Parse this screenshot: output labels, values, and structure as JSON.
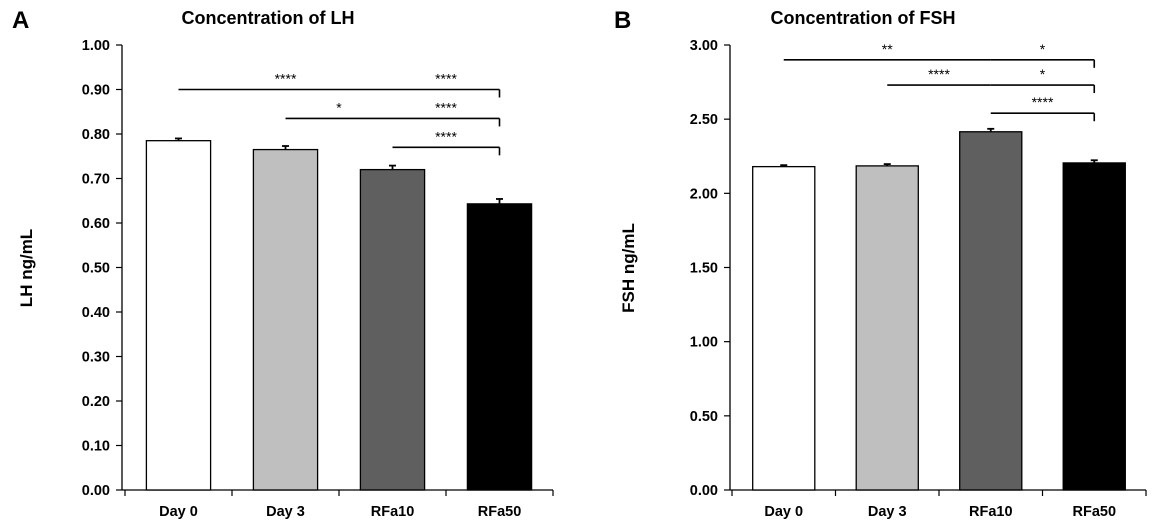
{
  "colors": {
    "axis": "#000000",
    "bar_outline": "#000000",
    "bar_fills": [
      "#ffffff",
      "#bfbfbf",
      "#5f5f5f",
      "#000000"
    ]
  },
  "chart_data": [
    {
      "type": "bar",
      "panel_label": "A",
      "title": "Concentration of LH",
      "xlabel": "",
      "ylabel": "LH ng/mL",
      "categories": [
        "Day 0",
        "Day 3",
        "RFa10",
        "RFa50"
      ],
      "values": [
        0.785,
        0.765,
        0.72,
        0.643
      ],
      "errors": [
        0.005,
        0.008,
        0.009,
        0.011
      ],
      "ylim": [
        0,
        1.0
      ],
      "yticks": [
        "0.00",
        "0.10",
        "0.20",
        "0.30",
        "0.40",
        "0.50",
        "0.60",
        "0.70",
        "0.80",
        "0.90",
        "1.00"
      ],
      "grid": false,
      "legend": "none",
      "significance": [
        {
          "from": 0,
          "to": 2,
          "label": "****",
          "level": 0.9
        },
        {
          "from": 2,
          "to": 3,
          "label": "****",
          "level": 0.9
        },
        {
          "from": 1,
          "to": 2,
          "label": "*",
          "level": 0.835
        },
        {
          "from": 2,
          "to": 3,
          "label": "****",
          "level": 0.835
        },
        {
          "from": 2,
          "to": 3,
          "label": "****",
          "level": 0.77
        }
      ]
    },
    {
      "type": "bar",
      "panel_label": "B",
      "title": "Concentration of FSH",
      "xlabel": "",
      "ylabel": "FSH ng/mL",
      "categories": [
        "Day 0",
        "Day 3",
        "RFa10",
        "RFa50"
      ],
      "values": [
        2.18,
        2.185,
        2.415,
        2.205
      ],
      "errors": [
        0.01,
        0.012,
        0.02,
        0.018
      ],
      "ylim": [
        0,
        3.0
      ],
      "yticks": [
        "0.00",
        "0.50",
        "1.00",
        "1.50",
        "2.00",
        "2.50",
        "3.00"
      ],
      "grid": false,
      "legend": "none",
      "significance": [
        {
          "from": 0,
          "to": 2,
          "label": "**",
          "level": 2.9
        },
        {
          "from": 2,
          "to": 3,
          "label": "*",
          "level": 2.9
        },
        {
          "from": 1,
          "to": 2,
          "label": "****",
          "level": 2.73
        },
        {
          "from": 2,
          "to": 3,
          "label": "*",
          "level": 2.73
        },
        {
          "from": 2,
          "to": 3,
          "label": "****",
          "level": 2.54
        }
      ]
    }
  ]
}
